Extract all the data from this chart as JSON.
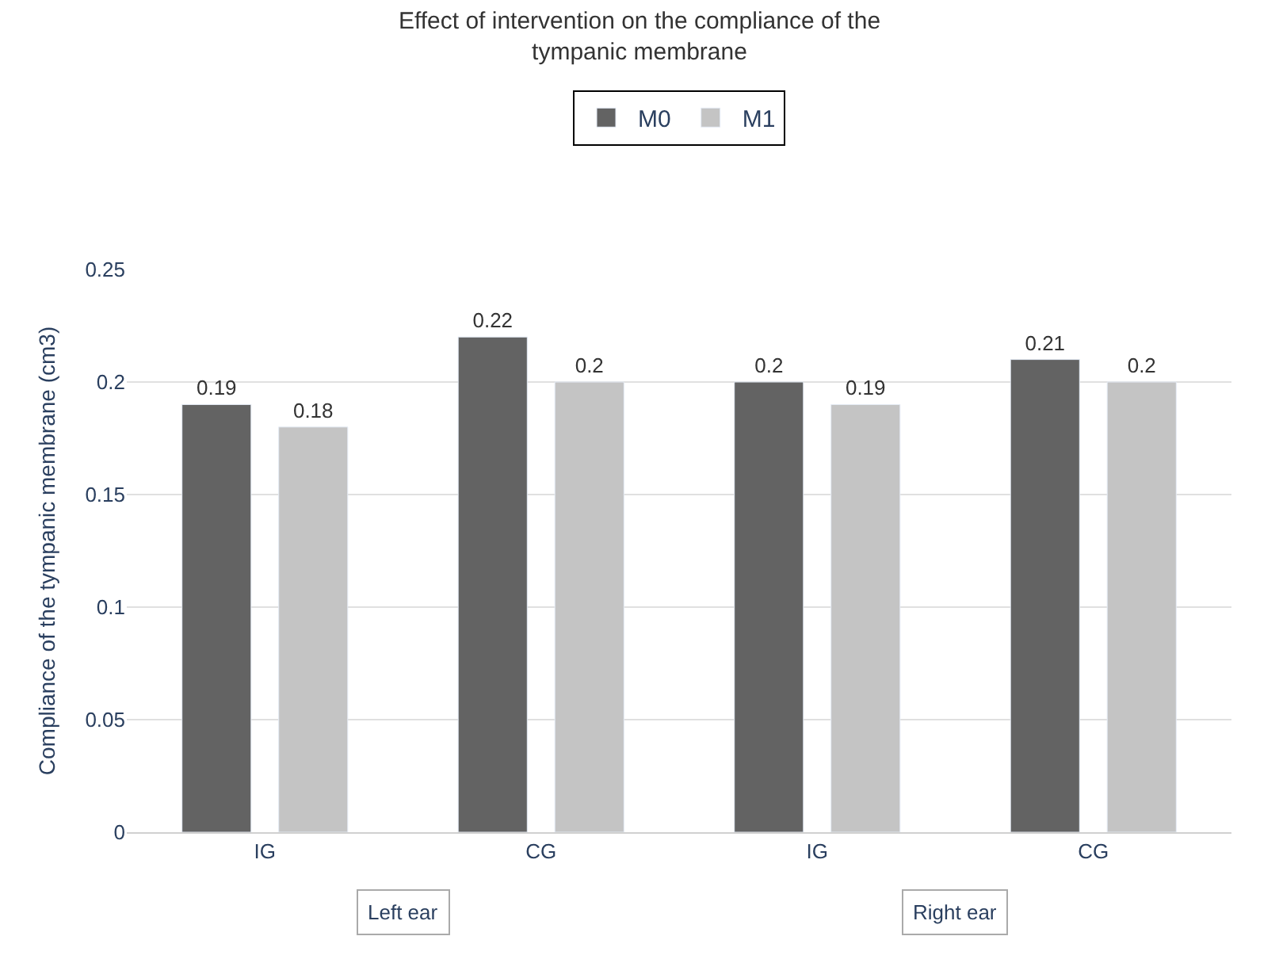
{
  "chart_data": {
    "type": "bar",
    "title": "Effect of intervention on the compliance of the\ntympanic membrane",
    "ylabel": "Compliance of the tympanic membrane (cm3)",
    "categories": [
      "IG",
      "CG",
      "IG",
      "CG"
    ],
    "series": [
      {
        "name": "M0",
        "color": "#636363",
        "values": [
          0.19,
          0.22,
          0.2,
          0.21
        ]
      },
      {
        "name": "M1",
        "color": "#c4c4c4",
        "values": [
          0.18,
          0.2,
          0.19,
          0.2
        ]
      }
    ],
    "ylim": [
      0,
      0.25
    ],
    "yticks": [
      0,
      0.05,
      0.1,
      0.15,
      0.2,
      0.25
    ],
    "grid": "y",
    "legend": "top",
    "data_labels": true,
    "annotations": [
      "Left ear",
      "Right ear"
    ]
  }
}
